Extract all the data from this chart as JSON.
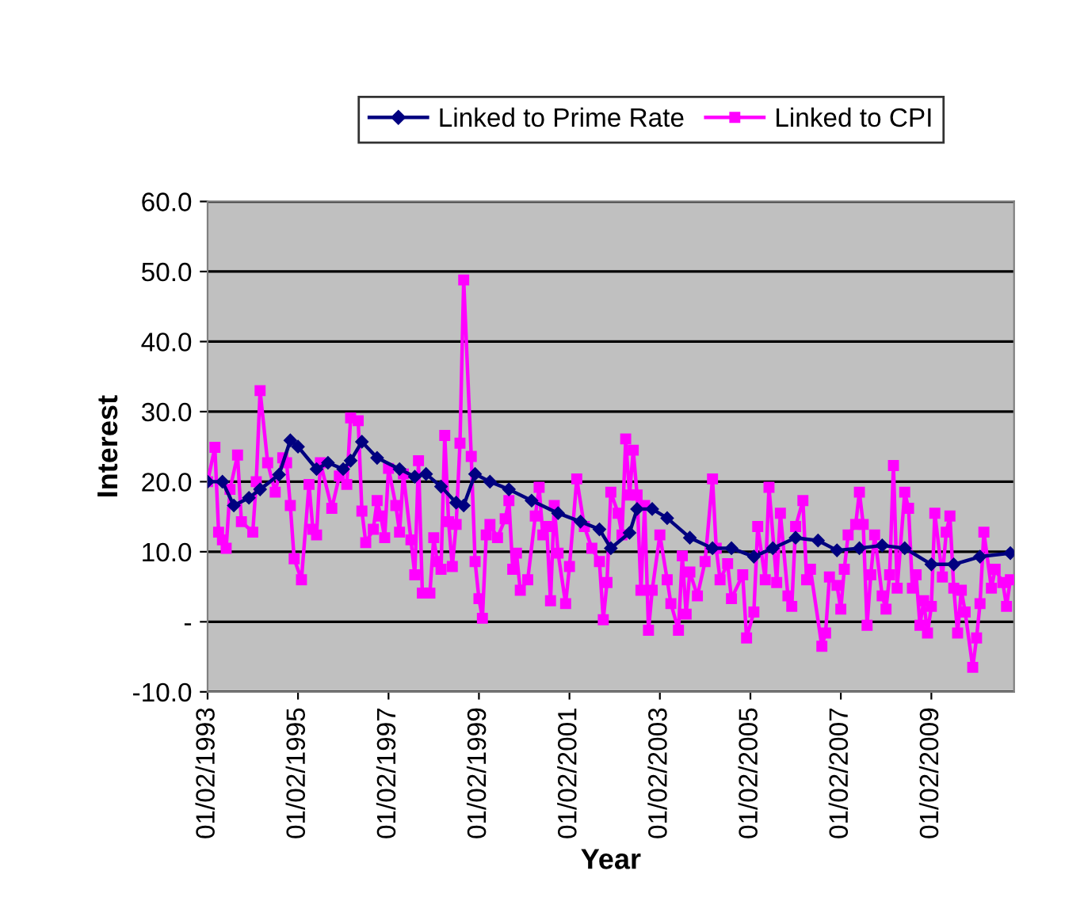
{
  "chart_data": {
    "type": "line",
    "xlabel": "Year",
    "ylabel": "Interest",
    "legend": "top",
    "grid": "y",
    "line_style": "solid",
    "xlim": [
      "1993-02-01",
      "2010-12-01"
    ],
    "xticks": [
      {
        "value": "1993-02-01",
        "label": "01/02/1993"
      },
      {
        "value": "1995-02-01",
        "label": "01/02/1995"
      },
      {
        "value": "1997-02-01",
        "label": "01/02/1997"
      },
      {
        "value": "1999-02-01",
        "label": "01/02/1999"
      },
      {
        "value": "2001-02-01",
        "label": "01/02/2001"
      },
      {
        "value": "2003-02-01",
        "label": "01/02/2003"
      },
      {
        "value": "2005-02-01",
        "label": "01/02/2005"
      },
      {
        "value": "2007-02-01",
        "label": "01/02/2007"
      },
      {
        "value": "2009-02-01",
        "label": "01/02/2009"
      }
    ],
    "ylim": [
      -10,
      60
    ],
    "yticks": [
      {
        "value": -10,
        "label": "-10.0"
      },
      {
        "value": 0,
        "label": "-"
      },
      {
        "value": 10,
        "label": "10.0"
      },
      {
        "value": 20,
        "label": "20.0"
      },
      {
        "value": 30,
        "label": "30.0"
      },
      {
        "value": 40,
        "label": "40.0"
      },
      {
        "value": 50,
        "label": "50.0"
      },
      {
        "value": 60,
        "label": "60.0"
      }
    ],
    "series": [
      {
        "name": "Linked to Prime Rate",
        "color": "#000080",
        "marker": "diamond",
        "x": [
          "1993-02",
          "1993-06",
          "1993-09",
          "1994-01",
          "1994-04",
          "1994-09",
          "1994-12",
          "1995-02",
          "1995-07",
          "1995-10",
          "1996-02",
          "1996-04",
          "1996-07",
          "1996-11",
          "1997-05",
          "1997-09",
          "1997-12",
          "1998-04",
          "1998-08",
          "1998-10",
          "1999-01",
          "1999-05",
          "1999-10",
          "2000-04",
          "2000-11",
          "2001-05",
          "2001-10",
          "2002-01",
          "2002-06",
          "2002-08",
          "2002-12",
          "2003-04",
          "2003-10",
          "2004-04",
          "2004-09",
          "2005-03",
          "2005-08",
          "2006-02",
          "2006-08",
          "2007-01",
          "2007-07",
          "2008-01",
          "2008-07",
          "2009-02",
          "2009-08",
          "2010-03",
          "2010-11"
        ],
        "values": [
          20.0,
          20.0,
          16.6,
          17.7,
          18.9,
          21.0,
          25.9,
          25.0,
          21.8,
          22.7,
          21.8,
          23.0,
          25.7,
          23.4,
          21.8,
          20.7,
          21.1,
          19.3,
          17.0,
          16.6,
          21.1,
          20.0,
          18.9,
          17.3,
          15.5,
          14.3,
          13.2,
          10.5,
          12.7,
          16.1,
          16.1,
          14.8,
          12.0,
          10.5,
          10.5,
          9.3,
          10.5,
          12.0,
          11.6,
          10.2,
          10.5,
          10.9,
          10.5,
          8.2,
          8.2,
          9.3,
          9.8
        ]
      },
      {
        "name": "Linked to CPI",
        "color": "#ff00ff",
        "marker": "square",
        "x": [
          "1993-02",
          "1993-04",
          "1993-05",
          "1993-06",
          "1993-07",
          "1993-08",
          "1993-10",
          "1993-11",
          "1994-02",
          "1994-03",
          "1994-04",
          "1994-06",
          "1994-08",
          "1994-10",
          "1994-11",
          "1994-12",
          "1995-01",
          "1995-03",
          "1995-05",
          "1995-06",
          "1995-07",
          "1995-08",
          "1995-11",
          "1996-01",
          "1996-03",
          "1996-04",
          "1996-06",
          "1996-07",
          "1996-08",
          "1996-10",
          "1996-11",
          "1996-12",
          "1997-01",
          "1997-02",
          "1997-04",
          "1997-05",
          "1997-06",
          "1997-08",
          "1997-09",
          "1997-10",
          "1997-11",
          "1998-01",
          "1998-02",
          "1998-03",
          "1998-04",
          "1998-05",
          "1998-06",
          "1998-07",
          "1998-08",
          "1998-09",
          "1998-10",
          "1998-12",
          "1999-01",
          "1999-02",
          "1999-03",
          "1999-04",
          "1999-05",
          "1999-07",
          "1999-09",
          "1999-10",
          "1999-11",
          "1999-12",
          "2000-01",
          "2000-03",
          "2000-05",
          "2000-06",
          "2000-07",
          "2000-08",
          "2000-09",
          "2000-10",
          "2000-11",
          "2001-01",
          "2001-02",
          "2001-04",
          "2001-06",
          "2001-08",
          "2001-10",
          "2001-11",
          "2001-12",
          "2002-01",
          "2002-03",
          "2002-04",
          "2002-05",
          "2002-06",
          "2002-07",
          "2002-08",
          "2002-09",
          "2002-10",
          "2002-11",
          "2002-12",
          "2003-02",
          "2003-04",
          "2003-05",
          "2003-07",
          "2003-08",
          "2003-09",
          "2003-10",
          "2003-12",
          "2004-02",
          "2004-04",
          "2004-05",
          "2004-06",
          "2004-08",
          "2004-09",
          "2004-12",
          "2005-01",
          "2005-03",
          "2005-04",
          "2005-06",
          "2005-07",
          "2005-09",
          "2005-10",
          "2005-12",
          "2006-01",
          "2006-02",
          "2006-04",
          "2006-05",
          "2006-06",
          "2006-09",
          "2006-10",
          "2006-11",
          "2007-01",
          "2007-02",
          "2007-03",
          "2007-04",
          "2007-06",
          "2007-07",
          "2007-08",
          "2007-09",
          "2007-10",
          "2007-11",
          "2008-01",
          "2008-02",
          "2008-03",
          "2008-04",
          "2008-05",
          "2008-07",
          "2008-08",
          "2008-09",
          "2008-10",
          "2008-11",
          "2008-12",
          "2009-01",
          "2009-02",
          "2009-03",
          "2009-05",
          "2009-06",
          "2009-07",
          "2009-08",
          "2009-09",
          "2009-10",
          "2009-11",
          "2010-01",
          "2010-02",
          "2010-03",
          "2010-04",
          "2010-06",
          "2010-07",
          "2010-09",
          "2010-10",
          "2010-11"
        ],
        "values": [
          20.0,
          24.9,
          12.8,
          11.7,
          10.5,
          18.9,
          23.8,
          14.3,
          12.8,
          20.0,
          33.0,
          22.7,
          18.5,
          23.4,
          22.7,
          16.6,
          9.0,
          6.0,
          19.6,
          13.2,
          12.4,
          22.7,
          16.2,
          20.8,
          19.6,
          29.1,
          28.7,
          15.8,
          11.3,
          13.2,
          17.3,
          15.1,
          12.0,
          21.9,
          16.6,
          12.8,
          21.1,
          11.7,
          6.7,
          23.0,
          4.1,
          4.1,
          12.0,
          8.6,
          7.5,
          26.6,
          14.3,
          7.9,
          13.9,
          25.5,
          48.8,
          23.6,
          8.6,
          3.3,
          0.5,
          12.4,
          13.9,
          12.0,
          14.7,
          17.3,
          7.5,
          9.8,
          4.5,
          6.0,
          15.1,
          19.2,
          12.4,
          13.6,
          3.0,
          16.6,
          9.8,
          2.6,
          7.9,
          20.4,
          13.6,
          10.5,
          8.6,
          0.3,
          5.6,
          18.5,
          15.5,
          12.4,
          26.1,
          18.1,
          24.5,
          18.1,
          4.5,
          16.6,
          -1.2,
          4.5,
          12.4,
          6.0,
          2.6,
          -1.2,
          9.4,
          1.1,
          7.1,
          3.7,
          8.6,
          20.4,
          10.5,
          6.0,
          8.3,
          3.3,
          6.7,
          -2.3,
          1.4,
          13.6,
          6.0,
          19.2,
          5.6,
          15.5,
          3.7,
          2.2,
          13.6,
          17.3,
          6.0,
          7.5,
          -3.5,
          -1.6,
          6.4,
          5.2,
          1.8,
          7.5,
          12.4,
          13.9,
          18.5,
          13.9,
          -0.5,
          6.7,
          12.4,
          3.7,
          1.8,
          6.7,
          22.3,
          4.8,
          18.5,
          16.2,
          4.8,
          6.7,
          -0.5,
          3.0,
          -1.6,
          2.2,
          15.5,
          6.4,
          12.8,
          15.1,
          4.8,
          -1.6,
          4.5,
          1.4,
          -6.5,
          -2.3,
          2.6,
          12.8,
          4.8,
          7.5,
          5.6,
          2.2,
          6.0
        ]
      }
    ]
  }
}
